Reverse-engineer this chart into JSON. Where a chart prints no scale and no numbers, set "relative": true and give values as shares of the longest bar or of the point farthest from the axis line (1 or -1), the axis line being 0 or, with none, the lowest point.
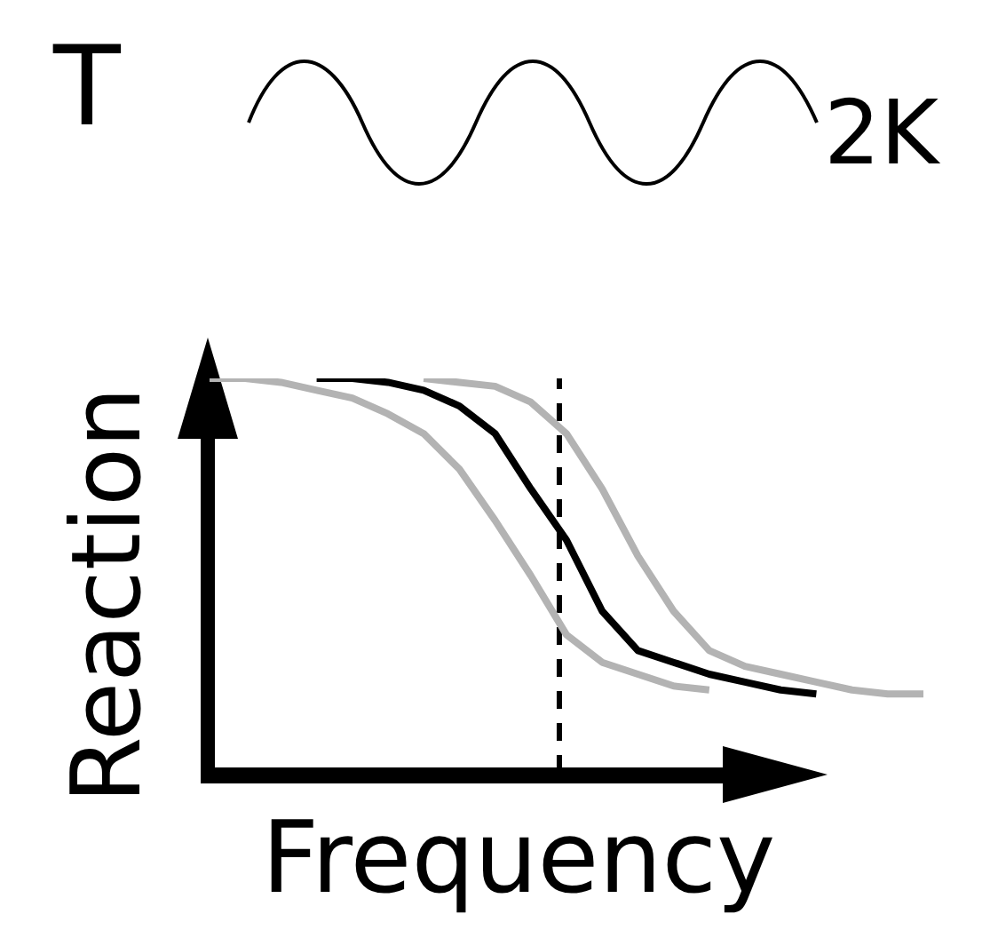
{
  "chart_data": {
    "type": "line",
    "relative": true,
    "xlabel": "Frequency",
    "ylabel": "Reaction",
    "annotations": [
      "T",
      "2K"
    ],
    "categories": [
      null,
      null,
      null,
      null,
      null,
      null,
      null,
      null,
      null,
      null,
      null,
      null,
      null,
      null,
      null,
      null,
      null,
      null,
      null,
      null,
      null
    ],
    "series": [
      {
        "color": "#b3b3b3",
        "values": [
          1.0,
          1.0,
          0.99,
          0.97,
          0.95,
          0.91,
          0.86,
          0.77,
          0.64,
          0.5,
          0.35,
          0.28,
          0.25,
          0.22,
          0.21,
          null,
          null,
          null,
          null,
          null,
          null
        ]
      },
      {
        "color": "#000000",
        "values": [
          null,
          null,
          null,
          1.0,
          1.0,
          0.99,
          0.97,
          0.93,
          0.86,
          0.72,
          0.59,
          0.41,
          0.31,
          0.28,
          0.25,
          0.23,
          0.21,
          0.2,
          null,
          null,
          null
        ]
      },
      {
        "color": "#b3b3b3",
        "values": [
          null,
          null,
          null,
          null,
          null,
          null,
          1.0,
          0.99,
          0.98,
          0.94,
          0.86,
          0.72,
          0.55,
          0.41,
          0.31,
          0.27,
          0.25,
          0.23,
          0.21,
          0.2,
          0.2
        ]
      }
    ],
    "grid": false,
    "legend": false,
    "marker": "none",
    "line_style": "solid"
  }
}
